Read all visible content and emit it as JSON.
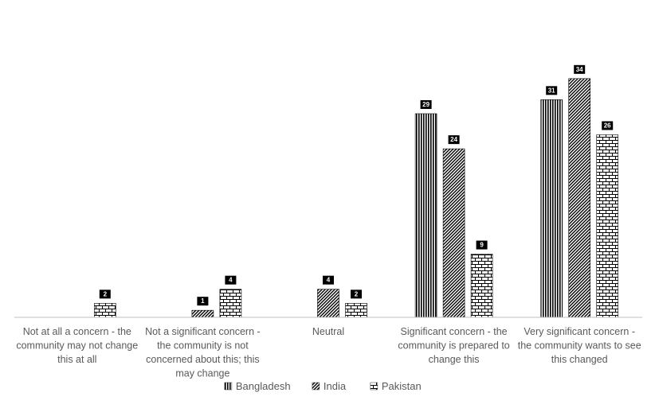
{
  "chart_data": {
    "type": "bar",
    "title": "",
    "xlabel": "",
    "ylabel": "",
    "ylim": [
      0,
      36
    ],
    "grid": false,
    "legend_position": "bottom",
    "categories": [
      [
        "Not at all a concern - the",
        "community may not change",
        "this at all"
      ],
      [
        "Not a significant concern -",
        "the community is not",
        "concerned about this; this",
        "may change"
      ],
      [
        "Neutral"
      ],
      [
        "Significant concern - the",
        "community is prepared to",
        "change this"
      ],
      [
        "Very significant concern -",
        "the community wants to see",
        "this changed"
      ]
    ],
    "series": [
      {
        "name": "Bangladesh",
        "pattern": "vertical-lines",
        "values": [
          null,
          null,
          null,
          29,
          31
        ]
      },
      {
        "name": "India",
        "pattern": "diagonal-lines",
        "values": [
          null,
          1,
          4,
          24,
          34
        ]
      },
      {
        "name": "Pakistan",
        "pattern": "brick",
        "values": [
          2,
          4,
          2,
          9,
          26
        ]
      }
    ],
    "colors": {
      "ink": "#000000",
      "axis": "#bfbfbf",
      "text": "#595959"
    }
  }
}
